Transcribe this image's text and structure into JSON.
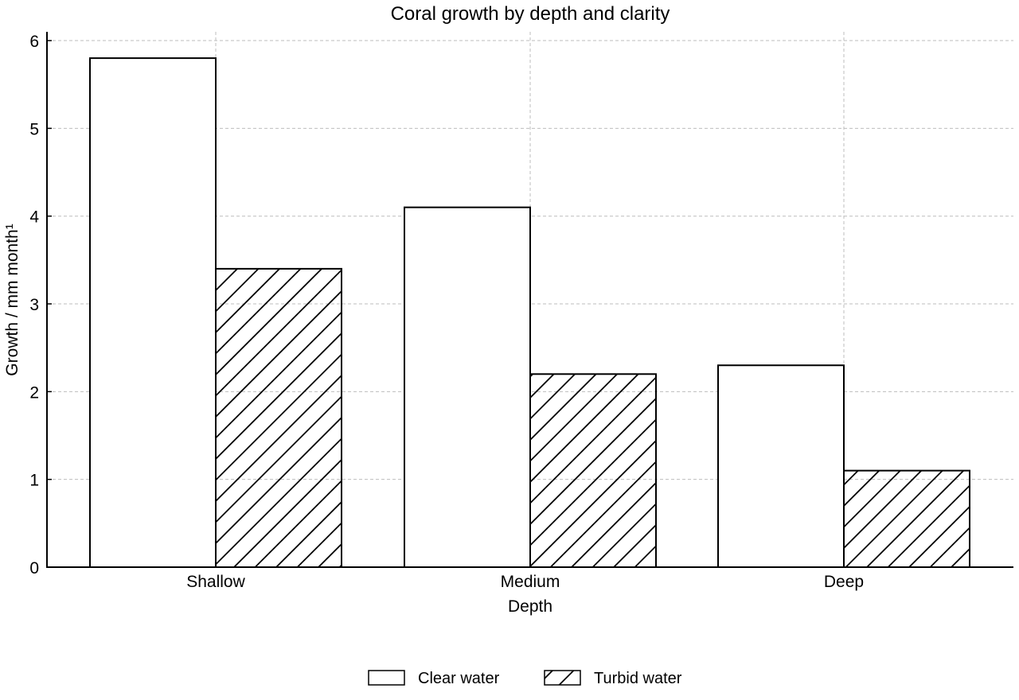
{
  "chart_data": {
    "type": "bar",
    "title": "Coral growth by depth and clarity",
    "xlabel": "Depth",
    "ylabel": "Growth / mm month¹",
    "categories": [
      "Shallow",
      "Medium",
      "Deep"
    ],
    "series": [
      {
        "name": "Clear water",
        "values": [
          5.8,
          4.1,
          2.3
        ],
        "fill": "#ffffff",
        "hatch": false
      },
      {
        "name": "Turbid water",
        "values": [
          3.4,
          2.2,
          1.1
        ],
        "fill": "#ffffff",
        "hatch": true
      }
    ],
    "ylim": [
      0,
      6.1
    ],
    "yticks": [
      "0",
      "1",
      "2",
      "3",
      "4",
      "5",
      "6"
    ],
    "grid": true,
    "legend_position": "bottom-center",
    "colors": {
      "edge": "#000000",
      "grid": "#bdbdbd"
    }
  }
}
